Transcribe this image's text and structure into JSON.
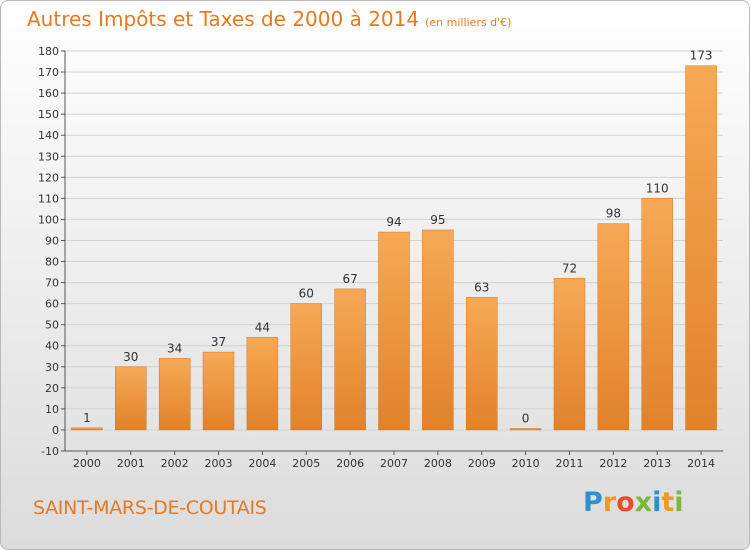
{
  "header": {
    "title": "Autres Impôts et Taxes de 2000 à 2014",
    "subtitle": "(en milliers d'€)"
  },
  "footer": {
    "commune": "SAINT-MARS-DE-COUTAIS",
    "logo_letters": [
      "P",
      "r",
      "o",
      "x",
      "i",
      "t",
      "i"
    ],
    "logo_colors": [
      "#2f8fd0",
      "#f29a1f",
      "#e84e2c",
      "#7cb83e",
      "#2f8fd0",
      "#f29a1f",
      "#7cb83e"
    ]
  },
  "colors": {
    "accent": "#e8791e",
    "bar_light": "#f7a955",
    "bar_dark": "#e0822a",
    "grid": "#d2d2d2"
  },
  "chart_data": {
    "type": "bar",
    "categories": [
      "2000",
      "2001",
      "2002",
      "2003",
      "2004",
      "2005",
      "2006",
      "2007",
      "2008",
      "2009",
      "2010",
      "2011",
      "2012",
      "2013",
      "2014"
    ],
    "values": [
      1,
      30,
      34,
      37,
      44,
      60,
      67,
      94,
      95,
      63,
      0,
      72,
      98,
      110,
      173
    ],
    "data_labels": [
      "1",
      "30",
      "34",
      "37",
      "44",
      "60",
      "67",
      "94",
      "95",
      "63",
      "0",
      "72",
      "98",
      "110",
      "173"
    ],
    "ylim": [
      -10,
      180
    ],
    "yticks": [
      -10,
      0,
      10,
      20,
      30,
      40,
      50,
      60,
      70,
      80,
      90,
      100,
      110,
      120,
      130,
      140,
      150,
      160,
      170,
      180
    ],
    "grid": true,
    "title": "Autres Impôts et Taxes de 2000 à 2014",
    "xlabel": "",
    "ylabel": ""
  }
}
